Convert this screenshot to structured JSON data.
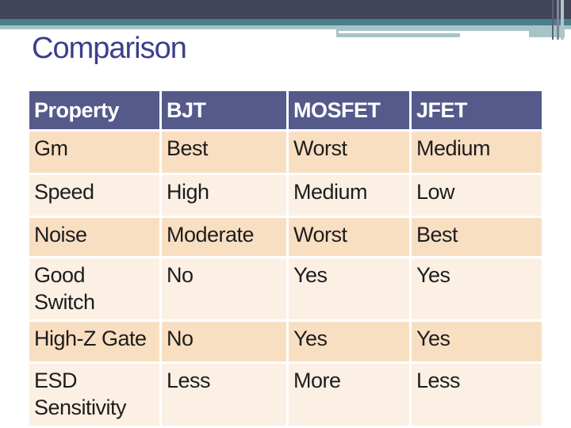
{
  "slide_title": "Comparison",
  "theme": {
    "top_bar_color": "#42455a",
    "teal_bar_color": "#47808a",
    "light_teal_color": "#a6c4c8",
    "title_color": "#3b3f8c",
    "table_header_bg": "#555a8b",
    "table_header_text_color": "#ffffff",
    "row_shade_dark": "#f9dfc2",
    "row_shade_light": "#fcf0e4",
    "body_text_color": "#1d1d1d"
  },
  "table": {
    "headers": [
      "Property",
      "BJT",
      "MOSFET",
      "JFET"
    ],
    "rows": [
      {
        "cells": [
          "Gm",
          "Best",
          "Worst",
          "Medium"
        ]
      },
      {
        "cells": [
          "Speed",
          "High",
          "Medium",
          "Low"
        ]
      },
      {
        "cells": [
          "Noise",
          "Moderate",
          "Worst",
          "Best"
        ]
      },
      {
        "cells": [
          "Good\nSwitch",
          "No",
          "Yes",
          "Yes"
        ]
      },
      {
        "cells": [
          "High-Z Gate",
          "No",
          "Yes",
          "Yes"
        ]
      },
      {
        "cells": [
          "ESD\nSensitivity",
          "Less",
          "More",
          "Less"
        ]
      }
    ]
  }
}
